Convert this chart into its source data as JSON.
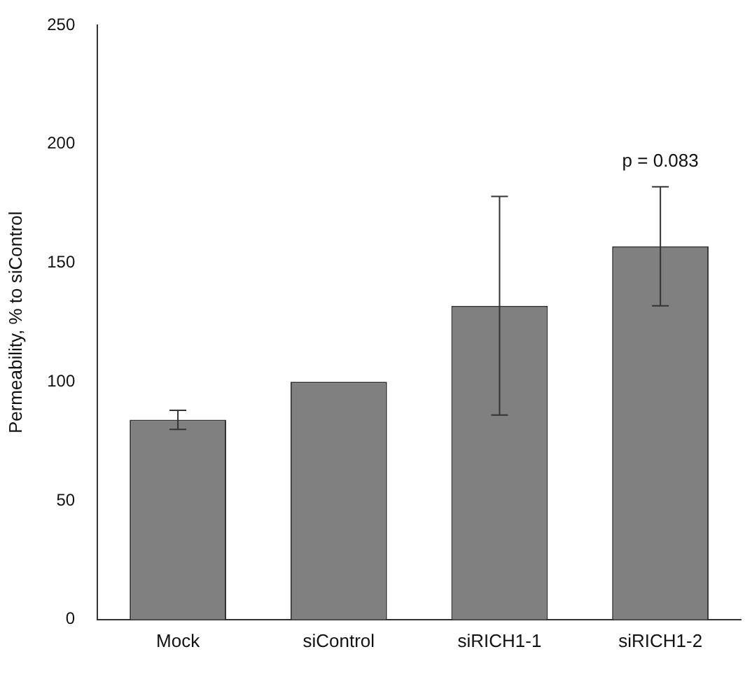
{
  "chart_data": {
    "type": "bar",
    "ylabel": "Permeability, % to siControl",
    "categories": [
      "Mock",
      "siControl",
      "siRICH1-1",
      "siRICH1-2"
    ],
    "values": [
      84,
      100,
      132,
      157
    ],
    "errors": [
      [
        80,
        88
      ],
      null,
      [
        86,
        178
      ],
      [
        132,
        182
      ]
    ],
    "color": "#808080",
    "ylim": [
      0,
      250
    ],
    "yticks": [
      0,
      50,
      100,
      150,
      200,
      250
    ],
    "grid": false,
    "legend": false,
    "annotations": [
      "p = 0.083"
    ]
  }
}
